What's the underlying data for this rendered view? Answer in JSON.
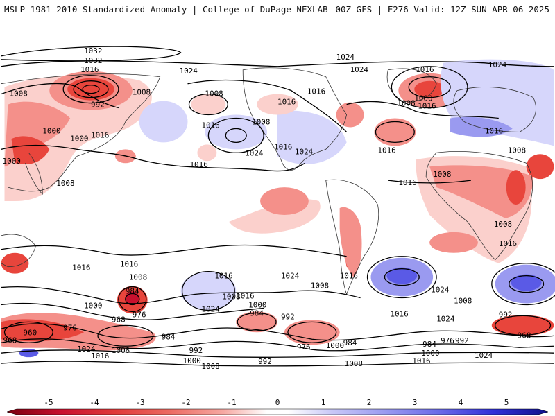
{
  "header": {
    "left_title": "MSLP 1981-2010 Standardized Anomaly | College of DuPage NEXLAB",
    "right_title": "00Z GFS | F276 Valid: 12Z SUN APR 06 2025"
  },
  "colors": {
    "neg_strong": "#c8102e",
    "neg_mid": "#e8453c",
    "neg_light": "#f4908a",
    "neg_faint": "#fbd0cc",
    "pos_faint": "#d6d6fb",
    "pos_light": "#9a9af0",
    "pos_mid": "#5a5ae6",
    "pos_strong": "#2020c8"
  },
  "colorbar": {
    "ticks": [
      "-5",
      "-4",
      "-3",
      "-2",
      "-1",
      "0",
      "1",
      "2",
      "3",
      "4",
      "5"
    ]
  },
  "isobar_labels": [
    "1032",
    "1032",
    "1016",
    "1008",
    "1024",
    "1008",
    "1024",
    "1016",
    "1024",
    "1016",
    "1024",
    "1008",
    "992",
    "1008",
    "1000",
    "1016",
    "1016",
    "1000",
    "1000",
    "1016",
    "1016",
    "1008",
    "1000",
    "1016",
    "1024",
    "1008",
    "1016",
    "1024",
    "1016",
    "1008",
    "1016",
    "1016",
    "1008",
    "1008",
    "1016",
    "1024",
    "1016",
    "1016",
    "1024",
    "1008",
    "984",
    "976",
    "1000",
    "968",
    "960",
    "968",
    "976",
    "984",
    "1024",
    "1008",
    "1016",
    "992",
    "984",
    "992",
    "1000",
    "1008",
    "1024",
    "1008",
    "1016",
    "1016",
    "976",
    "984",
    "1000",
    "992",
    "1008",
    "1000",
    "1016",
    "1008",
    "984",
    "976",
    "992",
    "968",
    "1000",
    "1008",
    "1016",
    "1024",
    "992",
    "1024",
    "1016"
  ]
}
